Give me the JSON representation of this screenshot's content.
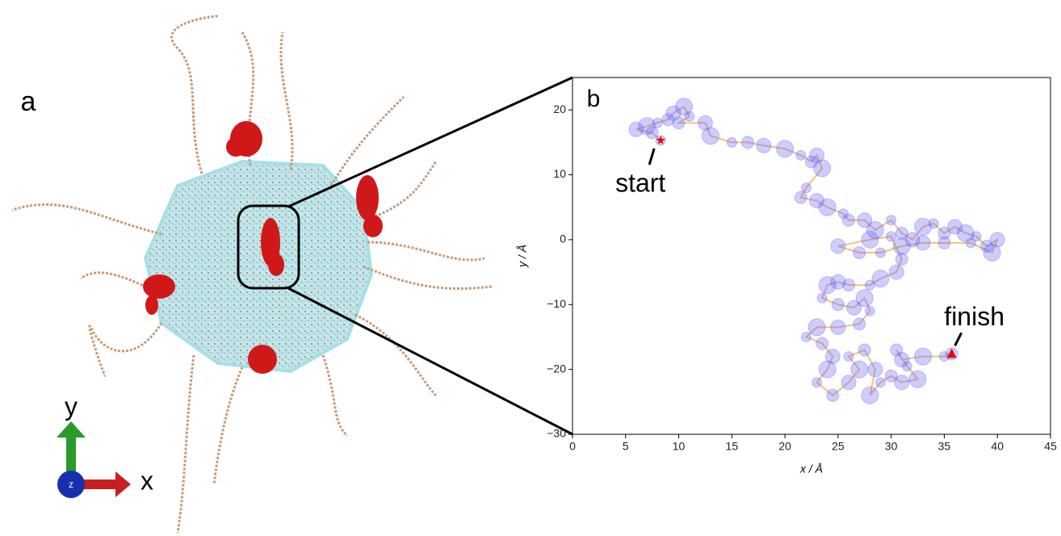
{
  "panel_a": {
    "label": "a",
    "axes": {
      "x": "x",
      "y": "y",
      "z": "z"
    }
  },
  "chart_data": {
    "type": "scatter",
    "panel_label": "b",
    "xlabel": "x / Å",
    "ylabel": "y / Å",
    "xlim": [
      0,
      45
    ],
    "ylim": [
      -30,
      25
    ],
    "xticks": [
      0,
      5,
      10,
      15,
      20,
      25,
      30,
      35,
      40,
      45
    ],
    "yticks": [
      {
        "value": -30,
        "label": "−30"
      },
      {
        "value": -20,
        "label": "−20"
      },
      {
        "value": -10,
        "label": "−10"
      },
      0,
      10,
      20
    ],
    "series": [
      {
        "marker_color": "#5a5aff",
        "line_color": "#f5b060",
        "x": [
          8.3,
          7.5,
          6,
          7,
          8,
          9,
          9.5,
          10.5,
          11,
          10,
          12.5,
          13,
          15,
          16.5,
          18,
          20,
          21.5,
          22.5,
          23,
          23.5,
          22,
          21.5,
          23,
          24,
          25.5,
          26,
          27.5,
          28.5,
          30,
          31,
          32,
          33,
          34,
          35,
          36,
          37,
          38,
          39,
          40,
          39.5,
          37.5,
          35,
          33,
          31,
          29,
          27,
          25,
          28,
          30,
          31,
          30.5,
          29,
          28,
          26,
          25,
          24,
          23.5,
          25,
          26.5,
          27.5,
          28,
          27,
          25,
          23,
          22,
          23.5,
          24.5,
          24,
          23,
          24.5,
          26,
          27,
          26,
          27.5,
          28.5,
          28,
          29,
          30,
          31,
          32.5,
          31.5,
          30.5,
          31,
          33,
          35,
          35.7
        ],
        "y": [
          15.3,
          16.5,
          17,
          17.5,
          18,
          18.5,
          19.5,
          20.5,
          19,
          18,
          18,
          16,
          15,
          15,
          14.5,
          14,
          13,
          12,
          13,
          11,
          8,
          6.5,
          6,
          5,
          4,
          3,
          3,
          1.5,
          3,
          1,
          0,
          2,
          2.5,
          1,
          2,
          1,
          0.5,
          -1,
          0,
          -2,
          -0.5,
          -0.5,
          -0.5,
          -1,
          -2,
          -2,
          -1,
          0,
          0.5,
          -3,
          -5,
          -6,
          -7,
          -7,
          -6.5,
          -7,
          -9,
          -10,
          -10.5,
          -9,
          -11,
          -13,
          -13.5,
          -13.5,
          -15,
          -16,
          -18,
          -20,
          -22,
          -24,
          -22,
          -20,
          -18,
          -17,
          -20,
          -24,
          -22,
          -21,
          -22,
          -21.5,
          -19.5,
          -17,
          -18.5,
          -18,
          -18,
          -17.6
        ]
      }
    ],
    "annotations": [
      {
        "text": "start",
        "x": 8.3,
        "y": 15.3,
        "color": "#e01010"
      },
      {
        "text": "finish",
        "x": 35.7,
        "y": -17.6,
        "color": "#e01010"
      }
    ]
  }
}
